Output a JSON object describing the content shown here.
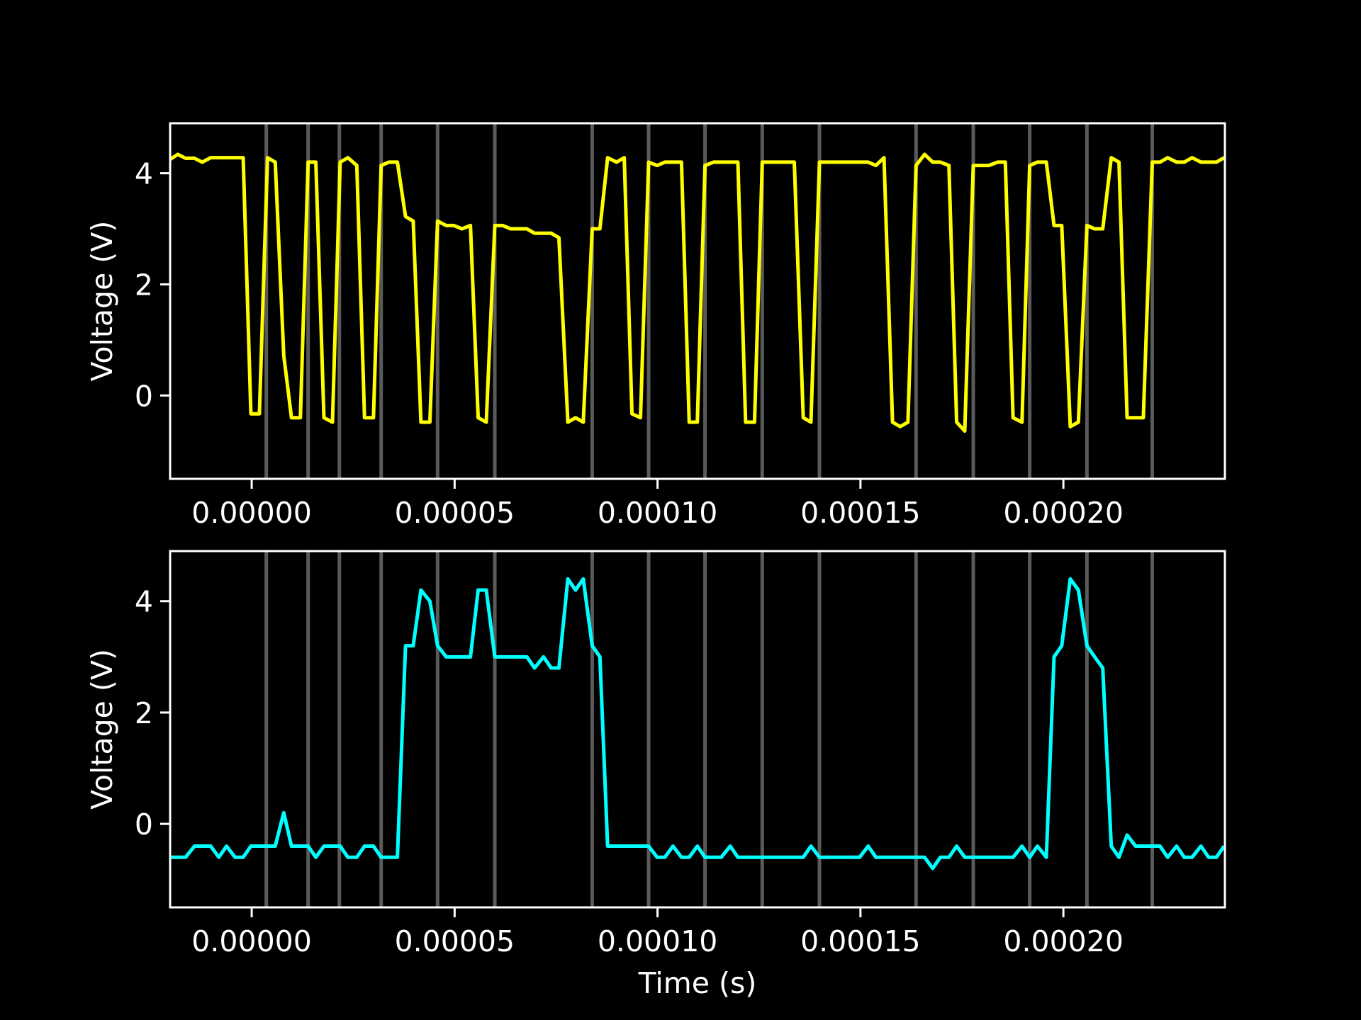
{
  "chart_data": [
    {
      "type": "line",
      "ylabel": "Voltage (V)",
      "xlim": [
        -2.01e-05,
        0.0002398
      ],
      "ylim": [
        -1.5,
        4.9
      ],
      "xticks": [
        {
          "value": 0,
          "label": "0.00000"
        },
        {
          "value": 5e-05,
          "label": "0.00005"
        },
        {
          "value": 0.0001,
          "label": "0.00010"
        },
        {
          "value": 0.00015,
          "label": "0.00015"
        },
        {
          "value": 0.0002,
          "label": "0.00020"
        }
      ],
      "yticks": [
        0,
        2,
        4
      ],
      "vlines": [
        3.6e-06,
        1.39e-05,
        2.16e-05,
        3.19e-05,
        4.58e-05,
        5.99e-05,
        8.39e-05,
        9.78e-05,
        0.0001117,
        0.0001258,
        0.0001399,
        0.0001637,
        0.0001778,
        0.0001917,
        0.0002058,
        0.0002219
      ],
      "vline_color": "#5a5a5a",
      "x": [
        -2.01e-05,
        -1.82e-05,
        -1.63e-05,
        -1.41e-05,
        -1.22e-05,
        -1.01e-05,
        -2.1e-06,
        -2e-07,
        1.9e-06,
        3.9e-06,
        5.8e-06,
        7.9e-06,
        9.8e-06,
        1.2e-05,
        1.39e-05,
        1.58e-05,
        1.78e-05,
        1.99e-05,
        2.18e-05,
        2.37e-05,
        2.59e-05,
        2.78e-05,
        3e-05,
        3.19e-05,
        3.38e-05,
        3.59e-05,
        3.79e-05,
        3.98e-05,
        4.17e-05,
        4.39e-05,
        4.58e-05,
        4.79e-05,
        4.98e-05,
        5.18e-05,
        5.39e-05,
        5.58e-05,
        5.78e-05,
        5.99e-05,
        6.18e-05,
        6.38e-05,
        6.59e-05,
        6.78e-05,
        6.97e-05,
        7.19e-05,
        7.38e-05,
        7.57e-05,
        7.79e-05,
        7.98e-05,
        8.17e-05,
        8.39e-05,
        8.58e-05,
        8.77e-05,
        8.99e-05,
        9.18e-05,
        9.37e-05,
        9.58e-05,
        9.78e-05,
        9.99e-05,
        0.0001018,
        0.0001038,
        0.0001059,
        0.0001078,
        0.0001098,
        0.0001117,
        0.0001138,
        0.0001198,
        0.0001217,
        0.0001239,
        0.0001258,
        0.0001337,
        0.0001359,
        0.0001378,
        0.0001399,
        0.0001519,
        0.0001538,
        0.0001558,
        0.0001579,
        0.0001598,
        0.0001617,
        0.0001637,
        0.0001658,
        0.0001678,
        0.0001697,
        0.0001718,
        0.0001737,
        0.0001757,
        0.0001778,
        0.0001797,
        0.0001816,
        0.0001838,
        0.0001857,
        0.0001876,
        0.0001898,
        0.0001917,
        0.0001936,
        0.0001958,
        0.0001977,
        0.0001996,
        0.0002017,
        0.0002037,
        0.0002058,
        0.0002077,
        0.0002097,
        0.0002118,
        0.0002137,
        0.0002157,
        0.0002178,
        0.0002197,
        0.0002219,
        0.0002238,
        0.0002257,
        0.0002279,
        0.0002298,
        0.0002317,
        0.0002339,
        0.0002377,
        0.0002396
      ],
      "series": [
        {
          "color": "#ffff00",
          "values": [
            4.25,
            4.34,
            4.27,
            4.27,
            4.2,
            4.28,
            4.28,
            -0.33,
            -0.33,
            4.28,
            4.2,
            0.72,
            -0.4,
            -0.4,
            4.2,
            4.2,
            -0.4,
            -0.48,
            4.2,
            4.28,
            4.14,
            -0.4,
            -0.4,
            4.14,
            4.2,
            4.2,
            3.22,
            3.14,
            -0.48,
            -0.48,
            3.14,
            3.06,
            3.06,
            3.0,
            3.06,
            -0.4,
            -0.48,
            3.06,
            3.06,
            3.0,
            3.0,
            3.0,
            2.92,
            2.92,
            2.92,
            2.84,
            -0.48,
            -0.4,
            -0.48,
            3.0,
            3.0,
            4.28,
            4.2,
            4.28,
            -0.33,
            -0.4,
            4.2,
            4.14,
            4.2,
            4.2,
            4.2,
            -0.48,
            -0.48,
            4.14,
            4.2,
            4.2,
            -0.48,
            -0.48,
            4.2,
            4.2,
            -0.4,
            -0.48,
            4.2,
            4.2,
            4.14,
            4.28,
            -0.48,
            -0.56,
            -0.48,
            4.14,
            4.34,
            4.2,
            4.2,
            4.14,
            -0.48,
            -0.64,
            4.14,
            4.14,
            4.14,
            4.2,
            4.2,
            -0.4,
            -0.48,
            4.14,
            4.2,
            4.2,
            3.06,
            3.06,
            -0.56,
            -0.48,
            3.06,
            3.0,
            3.0,
            4.28,
            4.2,
            -0.4,
            -0.4,
            -0.4,
            4.2,
            4.2,
            4.28,
            4.2,
            4.2,
            4.28,
            4.2,
            4.2,
            4.28
          ]
        }
      ]
    },
    {
      "type": "line",
      "ylabel": "Voltage (V)",
      "xlabel": "Time (s)",
      "xlim": [
        -2.01e-05,
        0.0002398
      ],
      "ylim": [
        -1.5,
        4.9
      ],
      "xticks": [
        {
          "value": 0,
          "label": "0.00000"
        },
        {
          "value": 5e-05,
          "label": "0.00005"
        },
        {
          "value": 0.0001,
          "label": "0.00010"
        },
        {
          "value": 0.00015,
          "label": "0.00015"
        },
        {
          "value": 0.0002,
          "label": "0.00020"
        }
      ],
      "yticks": [
        0,
        2,
        4
      ],
      "vlines": [
        3.6e-06,
        1.39e-05,
        2.16e-05,
        3.19e-05,
        4.58e-05,
        5.99e-05,
        8.39e-05,
        9.78e-05,
        0.0001117,
        0.0001258,
        0.0001399,
        0.0001637,
        0.0001778,
        0.0001917,
        0.0002058,
        0.0002219
      ],
      "vline_color": "#5a5a5a",
      "x": [
        -2.01e-05,
        -1.63e-05,
        -1.41e-05,
        -1.01e-05,
        -8.1e-06,
        -6.2e-06,
        -4.1e-06,
        -2.1e-06,
        -2e-07,
        5.8e-06,
        7.9e-06,
        9.8e-06,
        1.39e-05,
        1.58e-05,
        1.78e-05,
        2.18e-05,
        2.37e-05,
        2.59e-05,
        2.78e-05,
        3e-05,
        3.19e-05,
        3.59e-05,
        3.79e-05,
        3.98e-05,
        4.17e-05,
        4.39e-05,
        4.58e-05,
        4.79e-05,
        5.39e-05,
        5.58e-05,
        5.78e-05,
        5.99e-05,
        6.78e-05,
        6.97e-05,
        7.19e-05,
        7.38e-05,
        7.57e-05,
        7.79e-05,
        7.98e-05,
        8.17e-05,
        8.39e-05,
        8.58e-05,
        8.77e-05,
        9.78e-05,
        9.99e-05,
        0.0001018,
        0.0001038,
        0.0001059,
        0.0001078,
        0.0001098,
        0.0001117,
        0.0001157,
        0.0001179,
        0.0001198,
        0.0001359,
        0.0001378,
        0.0001399,
        0.0001498,
        0.0001519,
        0.0001538,
        0.0001658,
        0.0001678,
        0.0001697,
        0.0001718,
        0.0001737,
        0.0001757,
        0.0001876,
        0.0001898,
        0.0001917,
        0.0001936,
        0.0001958,
        0.0001977,
        0.0001996,
        0.0002017,
        0.0002037,
        0.0002058,
        0.0002077,
        0.0002097,
        0.0002118,
        0.0002137,
        0.0002157,
        0.0002178,
        0.0002238,
        0.0002257,
        0.0002279,
        0.0002298,
        0.0002317,
        0.0002339,
        0.0002358,
        0.0002377,
        0.0002396
      ],
      "series": [
        {
          "color": "#00ffff",
          "values": [
            -0.6,
            -0.6,
            -0.4,
            -0.4,
            -0.6,
            -0.4,
            -0.6,
            -0.6,
            -0.4,
            -0.4,
            0.2,
            -0.4,
            -0.4,
            -0.6,
            -0.4,
            -0.4,
            -0.6,
            -0.6,
            -0.4,
            -0.4,
            -0.6,
            -0.6,
            3.2,
            3.2,
            4.2,
            4.0,
            3.2,
            3.0,
            3.0,
            4.2,
            4.2,
            3.0,
            3.0,
            2.8,
            3.0,
            2.8,
            2.8,
            4.4,
            4.2,
            4.4,
            3.2,
            3.0,
            -0.4,
            -0.4,
            -0.6,
            -0.6,
            -0.4,
            -0.6,
            -0.6,
            -0.4,
            -0.6,
            -0.6,
            -0.4,
            -0.6,
            -0.6,
            -0.4,
            -0.6,
            -0.6,
            -0.4,
            -0.6,
            -0.6,
            -0.8,
            -0.6,
            -0.6,
            -0.4,
            -0.6,
            -0.6,
            -0.4,
            -0.6,
            -0.4,
            -0.6,
            3.0,
            3.2,
            4.4,
            4.2,
            3.2,
            3.0,
            2.8,
            -0.4,
            -0.6,
            -0.2,
            -0.4,
            -0.4,
            -0.6,
            -0.4,
            -0.6,
            -0.6,
            -0.4,
            -0.6,
            -0.6,
            -0.4
          ]
        }
      ]
    }
  ]
}
